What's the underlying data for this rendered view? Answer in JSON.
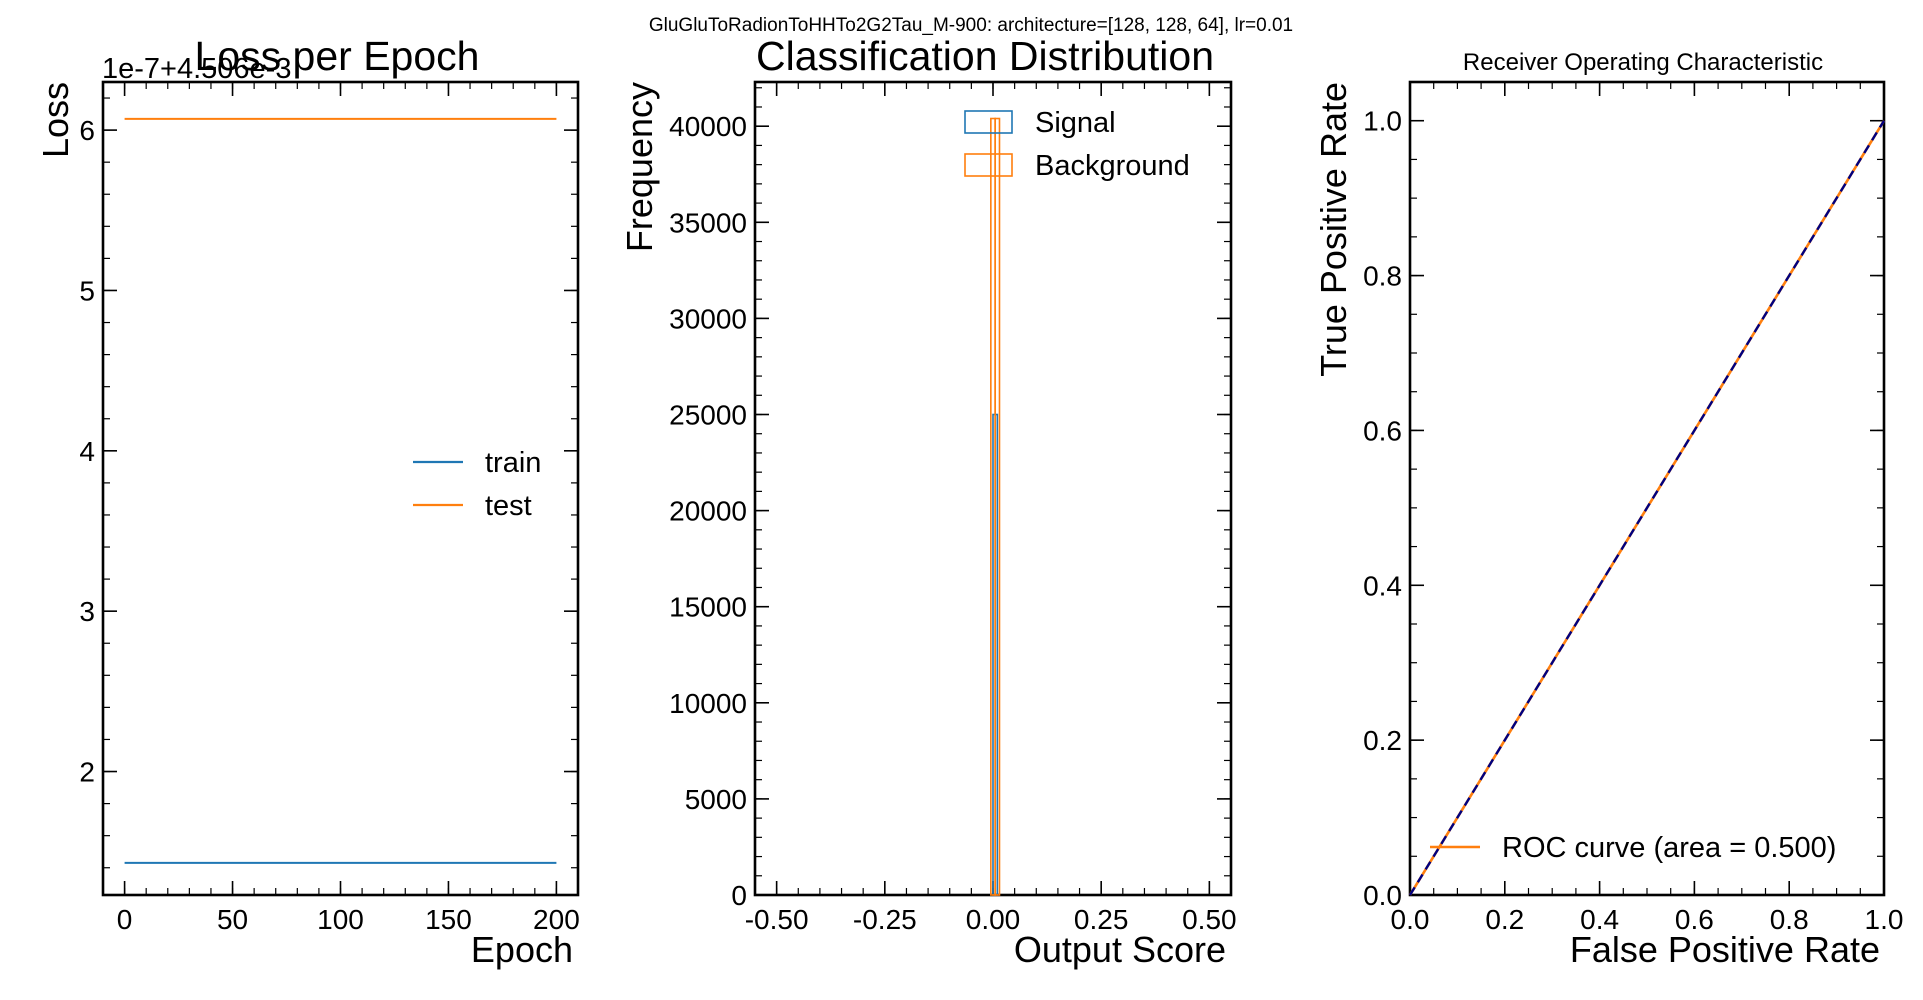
{
  "figure": {
    "suptitle": "GluGluToRadionToHHTo2G2Tau_M-900: architecture=[128, 128, 64], lr=0.01"
  },
  "colors": {
    "train": "#1f77b4",
    "test": "#ff7f0e",
    "signal": "#1f77b4",
    "background": "#ff7f0e",
    "roc": "#ff7f0e",
    "diagonal": "#000080",
    "axis": "#000000"
  },
  "chart_data": [
    {
      "type": "line",
      "title": "Loss per Epoch",
      "xlabel": "Epoch",
      "ylabel": "Loss",
      "offset_text": "1e-7+4.506e-3",
      "xlim": [
        -10,
        210
      ],
      "ylim": [
        1.23,
        6.3
      ],
      "x_ticks": [
        0,
        50,
        100,
        150,
        200
      ],
      "y_ticks": [
        2,
        3,
        4,
        5,
        6
      ],
      "x": [
        0,
        200
      ],
      "series": [
        {
          "name": "train",
          "values": [
            1.43,
            1.43
          ]
        },
        {
          "name": "test",
          "values": [
            6.07,
            6.07
          ]
        }
      ],
      "legend_position": "right"
    },
    {
      "type": "bar",
      "title": "Classification Distribution",
      "xlabel": "Output Score",
      "ylabel": "Frequency",
      "xlim": [
        -0.55,
        0.55
      ],
      "ylim": [
        0,
        42300
      ],
      "x_ticks": [
        -0.5,
        -0.25,
        0.0,
        0.25,
        0.5
      ],
      "x_tick_labels": [
        "-0.50",
        "-0.25",
        "0.00",
        "0.25",
        "0.50"
      ],
      "y_ticks": [
        0,
        5000,
        10000,
        15000,
        20000,
        25000,
        30000,
        35000,
        40000
      ],
      "series": [
        {
          "name": "Signal",
          "bin_edges": [
            0.0,
            0.01
          ],
          "values": [
            25000
          ],
          "histtype": "step"
        },
        {
          "name": "Background",
          "bin_edges": [
            -0.005,
            0.005,
            0.015
          ],
          "values": [
            40400,
            40400
          ],
          "histtype": "step"
        }
      ],
      "legend_position": "top-right"
    },
    {
      "type": "line",
      "title": "Receiver Operating Characteristic",
      "xlabel": "False Positive Rate",
      "ylabel": "True Positive Rate",
      "xlim": [
        0.0,
        1.0
      ],
      "ylim": [
        0.0,
        1.05
      ],
      "x_ticks": [
        0.0,
        0.2,
        0.4,
        0.6,
        0.8,
        1.0
      ],
      "y_ticks": [
        0.0,
        0.2,
        0.4,
        0.6,
        0.8,
        1.0
      ],
      "series": [
        {
          "name": "ROC curve (area = 0.500)",
          "x": [
            0.0,
            1.0
          ],
          "values": [
            0.0,
            1.0
          ]
        },
        {
          "x": [
            0.0,
            1.0
          ],
          "values": [
            0.0,
            1.0
          ],
          "style": "dashed"
        }
      ],
      "legend_position": "bottom-right"
    }
  ]
}
